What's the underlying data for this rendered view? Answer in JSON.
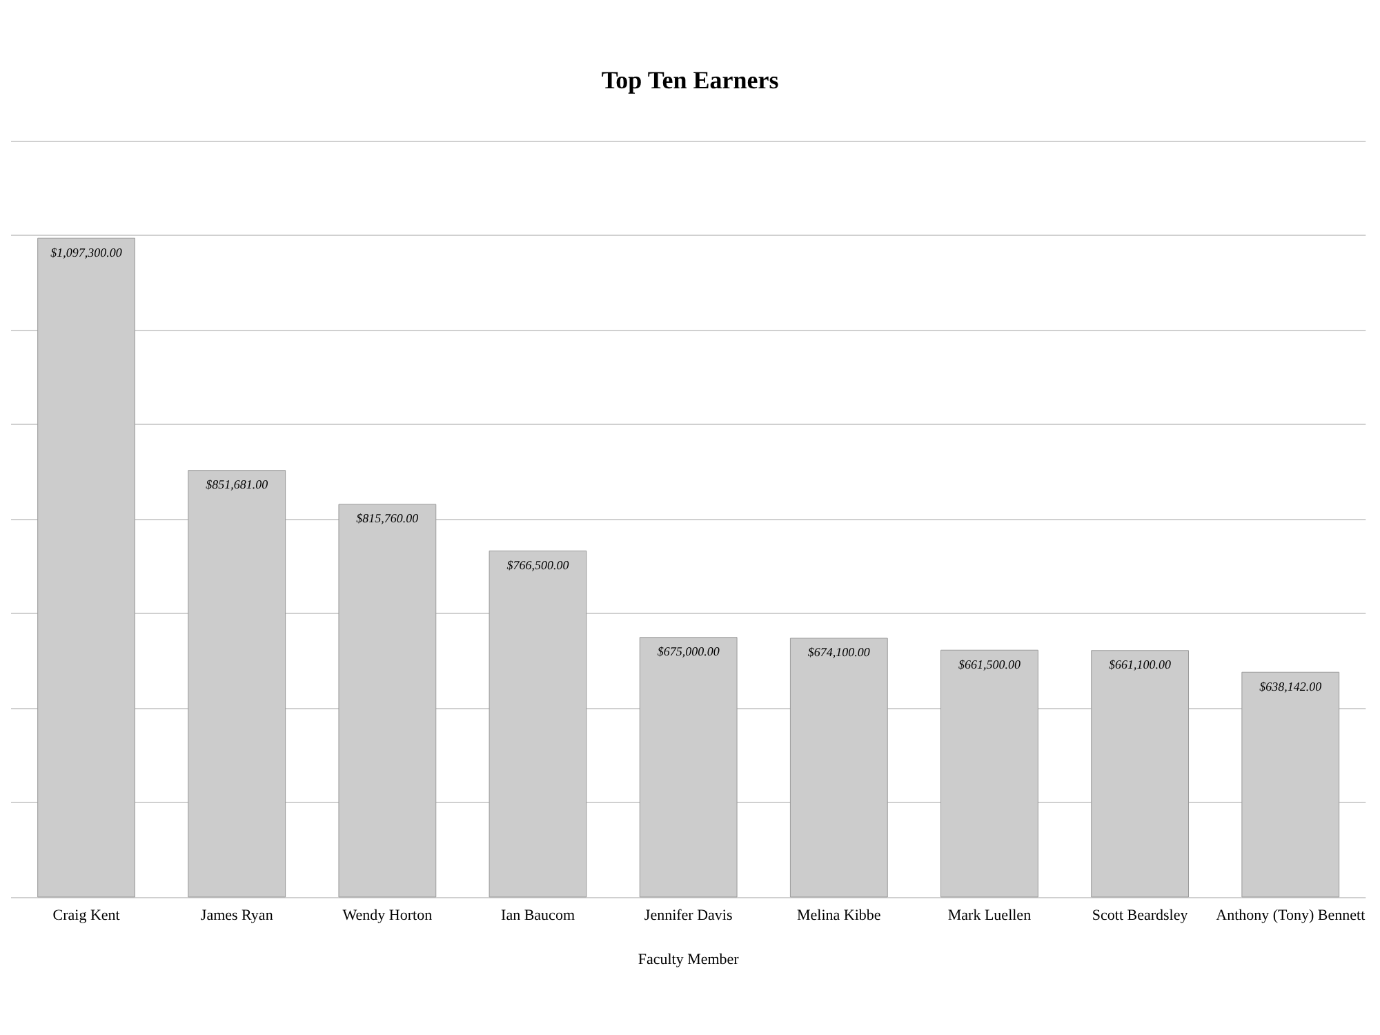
{
  "chart_data": {
    "type": "bar",
    "title": "Top Ten Earners",
    "xlabel": "Faculty Member",
    "categories": [
      "Craig Kent",
      "James Ryan",
      "Wendy Horton",
      "Ian Baucom",
      "Jennifer Davis",
      "Melina Kibbe",
      "Mark Luellen",
      "Scott Beardsley",
      "Anthony (Tony) Bennett"
    ],
    "values": [
      1097300,
      851681,
      815760,
      766500,
      675000,
      674100,
      661500,
      661100,
      638142
    ],
    "value_labels": [
      "$1,097,300.00",
      "$851,681.00",
      "$815,760.00",
      "$766,500.00",
      "$675,000.00",
      "$674,100.00",
      "$661,500.00",
      "$661,100.00",
      "$638,142.00"
    ],
    "color": "#cccccc",
    "ylim": [
      400000,
      1200000
    ],
    "yticks": [
      {
        "value": 400000,
        "label": null
      },
      {
        "value": 500000,
        "label": null
      },
      {
        "value": 600000,
        "label": null
      },
      {
        "value": 700000,
        "label": null
      },
      {
        "value": 800000,
        "label": null
      },
      {
        "value": 900000,
        "label": null
      },
      {
        "value": 1000000,
        "label": null
      },
      {
        "value": 1100000,
        "label": null
      },
      {
        "value": 1200000,
        "label": null
      }
    ],
    "tick_labels": "x",
    "grid": "y"
  }
}
